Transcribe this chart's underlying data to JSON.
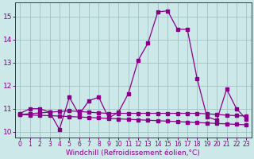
{
  "xlabel": "Windchill (Refroidissement éolien,°C)",
  "background_color": "#cce8e8",
  "line_color": "#880088",
  "grid_color": "#99bbbb",
  "xlim": [
    -0.5,
    23.5
  ],
  "ylim": [
    9.75,
    15.6
  ],
  "yticks": [
    10,
    11,
    12,
    13,
    14,
    15
  ],
  "xticks": [
    0,
    1,
    2,
    3,
    4,
    5,
    6,
    7,
    8,
    9,
    10,
    11,
    12,
    13,
    14,
    15,
    16,
    17,
    18,
    19,
    20,
    21,
    22,
    23
  ],
  "series1_x": [
    0,
    1,
    2,
    3,
    4,
    5,
    6,
    7,
    8,
    9,
    10,
    11,
    12,
    13,
    14,
    15,
    16,
    17,
    18,
    19,
    20,
    21,
    22,
    23
  ],
  "series1_y": [
    10.8,
    11.0,
    11.0,
    10.85,
    10.1,
    11.5,
    10.75,
    11.35,
    11.5,
    10.6,
    10.85,
    11.65,
    13.1,
    13.85,
    15.2,
    15.25,
    14.45,
    14.45,
    12.3,
    10.65,
    10.5,
    11.85,
    11.0,
    10.55
  ],
  "series2_x": [
    0,
    1,
    2,
    3,
    4,
    5,
    6,
    7,
    8,
    9,
    10,
    11,
    12,
    13,
    14,
    15,
    16,
    17,
    18,
    19,
    20,
    21,
    22,
    23
  ],
  "series2_y": [
    10.75,
    10.78,
    10.82,
    10.85,
    10.88,
    10.91,
    10.88,
    10.85,
    10.82,
    10.8,
    10.8,
    10.8,
    10.8,
    10.8,
    10.8,
    10.8,
    10.8,
    10.8,
    10.8,
    10.78,
    10.75,
    10.72,
    10.7,
    10.68
  ],
  "series3_x": [
    0,
    1,
    2,
    3,
    4,
    5,
    6,
    7,
    8,
    9,
    10,
    11,
    12,
    13,
    14,
    15,
    16,
    17,
    18,
    19,
    20,
    21,
    22,
    23
  ],
  "series3_y": [
    10.75,
    10.73,
    10.71,
    10.7,
    10.68,
    10.66,
    10.64,
    10.62,
    10.6,
    10.58,
    10.56,
    10.54,
    10.52,
    10.5,
    10.48,
    10.46,
    10.44,
    10.42,
    10.4,
    10.38,
    10.36,
    10.34,
    10.32,
    10.3
  ],
  "xtick_fontsize": 5.5,
  "ytick_fontsize": 6.5,
  "label_fontsize": 6.5
}
